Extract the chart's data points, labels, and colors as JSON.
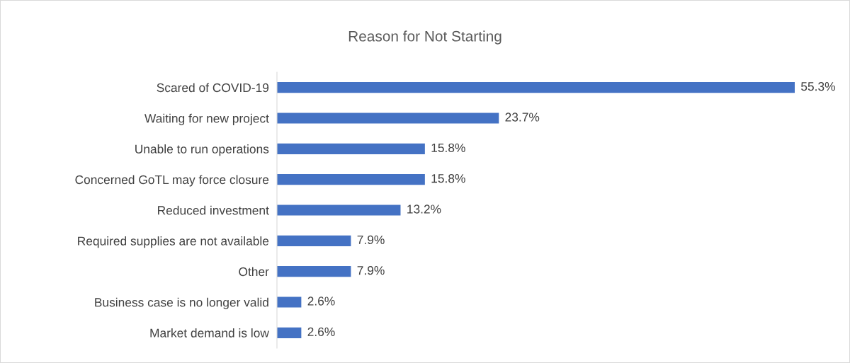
{
  "chart_data": {
    "type": "bar",
    "orientation": "horizontal",
    "title": "Reason for Not Starting",
    "categories": [
      "Scared of COVID-19",
      "Waiting for new project",
      "Unable to run operations",
      "Concerned GoTL may force closure",
      "Reduced investment",
      "Required supplies are not available",
      "Other",
      "Business case is no longer valid",
      "Market demand is low"
    ],
    "values": [
      55.3,
      23.7,
      15.8,
      15.8,
      13.2,
      7.9,
      7.9,
      2.6,
      2.6
    ],
    "value_labels": [
      "55.3%",
      "23.7%",
      "15.8%",
      "15.8%",
      "13.2%",
      "7.9%",
      "7.9%",
      "2.6%",
      "2.6%"
    ],
    "color": "#4472c4",
    "grid": false,
    "legend": false
  }
}
